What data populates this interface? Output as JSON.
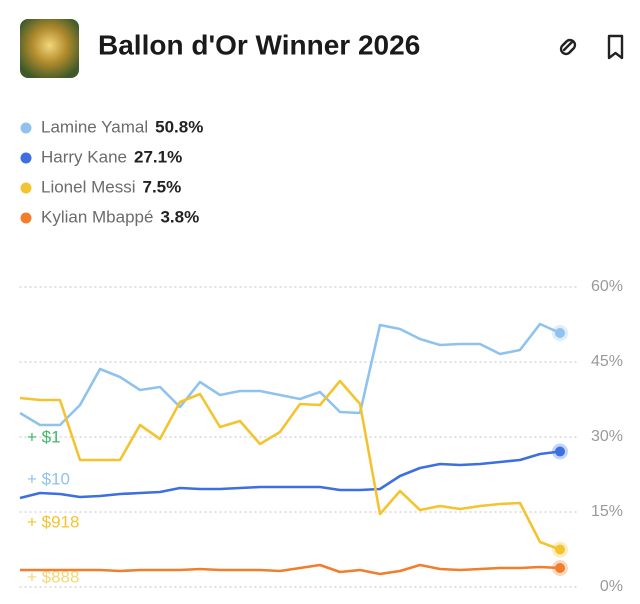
{
  "chart_data": {
    "type": "line",
    "title": "Ballon d'Or Winner 2026",
    "series": [
      {
        "name": "Lamine Yamal",
        "color": "#8fc3ee",
        "values": [
          34.8,
          32.4,
          32.4,
          36.4,
          43.6,
          42,
          39.4,
          40,
          36,
          41,
          38.4,
          39.2,
          39.2,
          38.4,
          37.6,
          39,
          35,
          34.8,
          52.4,
          51.6,
          49.6,
          48.4,
          48.6,
          48.6,
          46.6,
          47.4,
          52.6,
          50.8
        ],
        "value_labels": [
          null,
          null,
          null,
          null,
          null,
          null,
          null,
          null,
          null,
          null,
          null,
          null,
          null,
          null,
          null,
          null,
          null,
          null,
          null,
          null,
          null,
          null,
          null,
          null,
          null,
          null,
          null,
          "50.8%"
        ]
      },
      {
        "name": "Harry Kane",
        "color": "#3d6fe0",
        "values": [
          17.8,
          18.8,
          18.6,
          18,
          18.2,
          18.6,
          18.8,
          19,
          19.8,
          19.6,
          19.6,
          19.8,
          20,
          20,
          20,
          20,
          19.4,
          19.4,
          19.6,
          22.2,
          23.8,
          24.6,
          24.4,
          24.6,
          25,
          25.4,
          26.6,
          27.1
        ],
        "value_labels": [
          null,
          null,
          null,
          null,
          null,
          null,
          null,
          null,
          null,
          null,
          null,
          null,
          null,
          null,
          null,
          null,
          null,
          null,
          null,
          null,
          null,
          null,
          null,
          null,
          null,
          null,
          null,
          "27.1%"
        ]
      },
      {
        "name": "Lionel Messi",
        "color": "#f4c430",
        "values": [
          37.8,
          37.4,
          37.4,
          25.4,
          25.4,
          25.4,
          32.4,
          29.6,
          37,
          38.6,
          32,
          33.2,
          28.6,
          31,
          36.6,
          36.4,
          41.2,
          36.6,
          14.6,
          19.2,
          15.4,
          16.2,
          15.6,
          16.2,
          16.6,
          16.8,
          9,
          7.5
        ],
        "value_labels": [
          null,
          null,
          null,
          null,
          null,
          null,
          null,
          null,
          null,
          null,
          null,
          null,
          null,
          null,
          null,
          null,
          null,
          null,
          null,
          null,
          null,
          null,
          null,
          null,
          null,
          null,
          null,
          "7.5%"
        ]
      },
      {
        "name": "Kylian Mbappé",
        "color": "#f07e2c",
        "values": [
          3.4,
          3.4,
          3.4,
          3.4,
          3.4,
          3.2,
          3.4,
          3.4,
          3.4,
          3.6,
          3.4,
          3.4,
          3.4,
          3.2,
          3.8,
          4.4,
          3,
          3.4,
          2.6,
          3.2,
          4.4,
          3.6,
          3.4,
          3.6,
          3.8,
          3.8,
          4,
          3.8
        ],
        "value_labels": [
          null,
          null,
          null,
          null,
          null,
          null,
          null,
          null,
          null,
          null,
          null,
          null,
          null,
          null,
          null,
          null,
          null,
          null,
          null,
          null,
          null,
          null,
          null,
          null,
          null,
          null,
          null,
          "3.8%"
        ]
      }
    ],
    "ylim": [
      0,
      60
    ],
    "yticks": [
      {
        "value": 0,
        "label": "0%"
      },
      {
        "value": 15,
        "label": "15%"
      },
      {
        "value": 30,
        "label": "30%"
      },
      {
        "value": 45,
        "label": "45%"
      },
      {
        "value": 60,
        "label": "60%"
      }
    ],
    "grid": true,
    "annotations": [
      "+ $1",
      "+ $10",
      "+ $918",
      "+ $888"
    ]
  }
}
